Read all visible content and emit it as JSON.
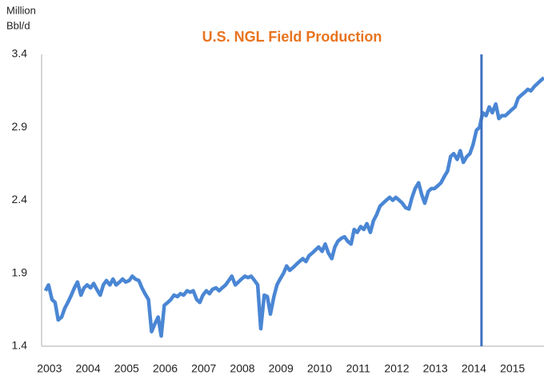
{
  "chart_data": {
    "type": "line",
    "title": "U.S. NGL Field Production",
    "ylabel": [
      "Million",
      "Bbl/d"
    ],
    "ylim": [
      1.4,
      3.4
    ],
    "yticks": [
      1.4,
      1.9,
      2.4,
      2.9,
      3.4
    ],
    "xlim": [
      2002.9,
      2015.92
    ],
    "xticks": [
      2003,
      2004,
      2005,
      2006,
      2007,
      2008,
      2009,
      2010,
      2011,
      2012,
      2013,
      2014,
      2015
    ],
    "grid": false,
    "marker_x": 2014.3,
    "marker_color": "#3f72c0",
    "series": [
      {
        "name": "U.S. NGL Field Production",
        "color": "#4a86d4",
        "x": [
          2003.0,
          2003.08,
          2003.17,
          2003.25,
          2003.33,
          2003.42,
          2003.5,
          2003.58,
          2003.67,
          2003.75,
          2003.83,
          2003.92,
          2004.0,
          2004.08,
          2004.17,
          2004.25,
          2004.33,
          2004.42,
          2004.5,
          2004.58,
          2004.67,
          2004.75,
          2004.83,
          2004.92,
          2005.0,
          2005.08,
          2005.17,
          2005.25,
          2005.33,
          2005.42,
          2005.5,
          2005.58,
          2005.67,
          2005.75,
          2005.83,
          2005.92,
          2006.0,
          2006.08,
          2006.17,
          2006.25,
          2006.33,
          2006.42,
          2006.5,
          2006.58,
          2006.67,
          2006.75,
          2006.83,
          2006.92,
          2007.0,
          2007.08,
          2007.17,
          2007.25,
          2007.33,
          2007.42,
          2007.5,
          2007.58,
          2007.67,
          2007.75,
          2007.83,
          2007.92,
          2008.0,
          2008.08,
          2008.17,
          2008.25,
          2008.33,
          2008.42,
          2008.5,
          2008.58,
          2008.67,
          2008.75,
          2008.83,
          2008.92,
          2009.0,
          2009.08,
          2009.17,
          2009.25,
          2009.33,
          2009.42,
          2009.5,
          2009.58,
          2009.67,
          2009.75,
          2009.83,
          2009.92,
          2010.0,
          2010.08,
          2010.17,
          2010.25,
          2010.33,
          2010.42,
          2010.5,
          2010.58,
          2010.67,
          2010.75,
          2010.83,
          2010.92,
          2011.0,
          2011.08,
          2011.17,
          2011.25,
          2011.33,
          2011.42,
          2011.5,
          2011.58,
          2011.67,
          2011.75,
          2011.83,
          2011.92,
          2012.0,
          2012.08,
          2012.17,
          2012.25,
          2012.33,
          2012.42,
          2012.5,
          2012.58,
          2012.67,
          2012.75,
          2012.83,
          2012.92,
          2013.0,
          2013.08,
          2013.17,
          2013.25,
          2013.33,
          2013.42,
          2013.5,
          2013.58,
          2013.67,
          2013.75,
          2013.83,
          2013.92,
          2014.0,
          2014.08,
          2014.17,
          2014.25,
          2014.33,
          2014.42,
          2014.5,
          2014.58,
          2014.67,
          2014.75,
          2014.83,
          2014.92,
          2015.0,
          2015.08,
          2015.17,
          2015.25,
          2015.33,
          2015.42,
          2015.5,
          2015.58,
          2015.67,
          2015.75,
          2015.83,
          2015.92
        ],
        "values": [
          1.78,
          1.82,
          1.72,
          1.7,
          1.58,
          1.6,
          1.66,
          1.7,
          1.75,
          1.8,
          1.84,
          1.75,
          1.8,
          1.82,
          1.8,
          1.83,
          1.79,
          1.75,
          1.82,
          1.85,
          1.82,
          1.86,
          1.82,
          1.84,
          1.86,
          1.84,
          1.85,
          1.88,
          1.86,
          1.85,
          1.8,
          1.76,
          1.72,
          1.5,
          1.55,
          1.6,
          1.47,
          1.68,
          1.7,
          1.72,
          1.75,
          1.74,
          1.76,
          1.75,
          1.78,
          1.77,
          1.78,
          1.72,
          1.7,
          1.75,
          1.78,
          1.76,
          1.79,
          1.8,
          1.78,
          1.8,
          1.82,
          1.85,
          1.88,
          1.82,
          1.84,
          1.86,
          1.88,
          1.87,
          1.88,
          1.85,
          1.82,
          1.52,
          1.75,
          1.74,
          1.62,
          1.74,
          1.82,
          1.86,
          1.9,
          1.95,
          1.92,
          1.94,
          1.96,
          1.98,
          2.0,
          1.98,
          2.02,
          2.04,
          2.06,
          2.08,
          2.05,
          2.1,
          2.04,
          2.0,
          2.08,
          2.12,
          2.14,
          2.15,
          2.12,
          2.1,
          2.2,
          2.18,
          2.22,
          2.2,
          2.24,
          2.18,
          2.26,
          2.3,
          2.36,
          2.38,
          2.4,
          2.42,
          2.4,
          2.42,
          2.4,
          2.38,
          2.35,
          2.34,
          2.42,
          2.48,
          2.52,
          2.44,
          2.38,
          2.46,
          2.48,
          2.48,
          2.5,
          2.52,
          2.56,
          2.6,
          2.7,
          2.72,
          2.68,
          2.74,
          2.66,
          2.7,
          2.72,
          2.78,
          2.88,
          2.9,
          3.0,
          2.98,
          3.04,
          3.0,
          3.06,
          2.96,
          2.98,
          2.98,
          3.0,
          3.02,
          3.04,
          3.1,
          3.12,
          3.14,
          3.16,
          3.15,
          3.18,
          3.2,
          3.22,
          3.24
        ]
      }
    ]
  }
}
